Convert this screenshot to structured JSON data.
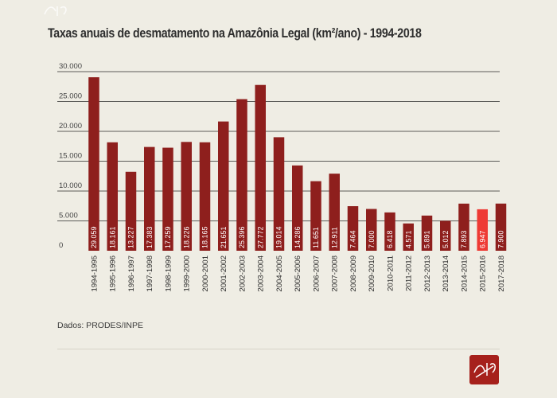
{
  "chart_data": {
    "type": "bar",
    "title": "Taxas anuais de desmatamento na Amazônia Legal (km²/ano) - 1994-2018",
    "categories": [
      "1994-1995",
      "1995-1996",
      "1996-1997",
      "1997-1998",
      "1998-1999",
      "1999-2000",
      "2000-2001",
      "2001-2002",
      "2002-2003",
      "2003-2004",
      "2004-2005",
      "2005-2006",
      "2006-2007",
      "2007-2008",
      "2008-2009",
      "2009-2010",
      "2010-2011",
      "2011-2012",
      "2012-2013",
      "2013-2014",
      "2014-2015",
      "2015-2016",
      "2017-2018"
    ],
    "values": [
      29059,
      18161,
      13227,
      17383,
      17259,
      18226,
      18165,
      21651,
      25396,
      27772,
      19014,
      14286,
      11651,
      12911,
      7464,
      7000,
      6418,
      4571,
      5891,
      5012,
      7893,
      6947,
      7900
    ],
    "value_labels": [
      "29.059",
      "18.161",
      "13.227",
      "17.383",
      "17.259",
      "18.226",
      "18.165",
      "21.651",
      "25.396",
      "27.772",
      "19.014",
      "14.286",
      "11.651",
      "12.911",
      "7.464",
      "7.000",
      "6.418",
      "4.571",
      "5.891",
      "5.012",
      "7.893",
      "6.947",
      "7.900"
    ],
    "highlight_category": "2015-2016",
    "yticks": [
      0,
      5000,
      10000,
      15000,
      20000,
      25000,
      30000
    ],
    "ytick_labels": [
      "0",
      "5.000",
      "10.000",
      "15.000",
      "20.000",
      "25.000",
      "30.000"
    ],
    "ylim": [
      0,
      32000
    ],
    "grid": true,
    "xlabel": "",
    "ylabel": ""
  },
  "colors": {
    "background": "#efede4",
    "bar": "#8e1f1d",
    "bar_highlight": "#ee3a34",
    "grid": "#2b2b2b",
    "logo": "#a6211c"
  },
  "source": "Dados: PRODES/INPE",
  "icons": {
    "top_logo": "logo-watermark-icon",
    "bottom_logo": "logo-badge-icon"
  }
}
